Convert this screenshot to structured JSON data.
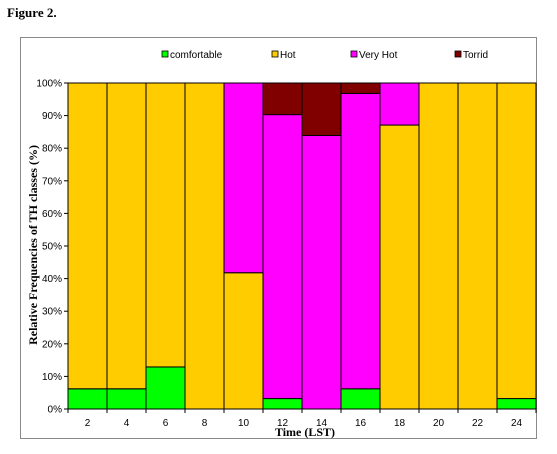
{
  "figure_label": "Figure 2.",
  "chart_data": {
    "type": "bar",
    "stacked": "percent",
    "categories": [
      "2",
      "4",
      "6",
      "8",
      "10",
      "12",
      "14",
      "16",
      "18",
      "20",
      "22",
      "24"
    ],
    "series": [
      {
        "name": "comfortable",
        "color": "#00ff00",
        "values": [
          6.2,
          6.2,
          12.9,
          0,
          0,
          3.2,
          0,
          6.2,
          0,
          0,
          0,
          3.2
        ]
      },
      {
        "name": "Hot",
        "color": "#ffcc00",
        "values": [
          93.8,
          93.8,
          87.1,
          100,
          41.8,
          0,
          0,
          0,
          87.1,
          100,
          100,
          96.8
        ]
      },
      {
        "name": "Very Hot",
        "color": "#ff00ff",
        "values": [
          0,
          0,
          0,
          0,
          58.2,
          87.1,
          83.9,
          90.6,
          12.9,
          0,
          0,
          0
        ]
      },
      {
        "name": "Torrid",
        "color": "#800000",
        "values": [
          0,
          0,
          0,
          0,
          0,
          9.7,
          16.1,
          3.2,
          0,
          0,
          0,
          0
        ]
      }
    ],
    "xlabel": "Time (LST)",
    "ylabel": "Relative Frequencies of TH classes (%)",
    "ylim": [
      0,
      100
    ],
    "yticks": [
      "0%",
      "10%",
      "20%",
      "30%",
      "40%",
      "50%",
      "60%",
      "70%",
      "80%",
      "90%",
      "100%"
    ],
    "legend_position": "top",
    "grid": false
  }
}
